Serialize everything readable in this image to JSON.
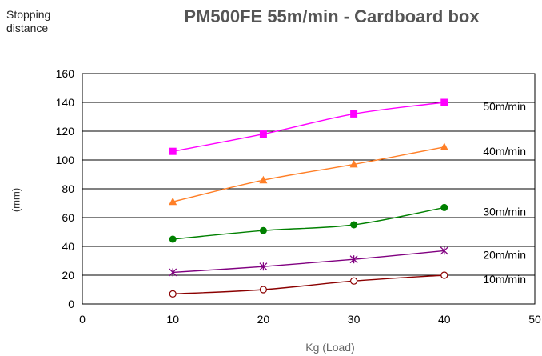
{
  "corner_note": [
    "Stopping",
    "distance"
  ],
  "chart_data": {
    "type": "line",
    "title": "PM500FE 55m/min - Cardboard box",
    "xlabel": "Kg (Load)",
    "ylabel": "(mm)",
    "xlim": [
      0,
      50
    ],
    "ylim": [
      0,
      160
    ],
    "xticks": [
      0,
      10,
      20,
      30,
      40,
      50
    ],
    "yticks": [
      0,
      20,
      40,
      60,
      80,
      100,
      120,
      140,
      160
    ],
    "grid": "horizontal",
    "legend": "labels at right end of each series",
    "x": [
      10,
      20,
      30,
      40
    ],
    "series": [
      {
        "name": "50m/min",
        "values": [
          106,
          118,
          132,
          140
        ],
        "color": "#ff00ff",
        "marker": "square"
      },
      {
        "name": "40m/min",
        "values": [
          71,
          86,
          97,
          109
        ],
        "color": "#ff7f27",
        "marker": "triangle"
      },
      {
        "name": "30m/min",
        "values": [
          45,
          51,
          55,
          67
        ],
        "color": "#008000",
        "marker": "circle-filled"
      },
      {
        "name": "20m/min",
        "values": [
          22,
          26,
          31,
          37
        ],
        "color": "#800080",
        "marker": "asterisk"
      },
      {
        "name": "10m/min",
        "values": [
          7,
          10,
          16,
          20
        ],
        "color": "#8b0000",
        "marker": "circle-open"
      }
    ]
  }
}
